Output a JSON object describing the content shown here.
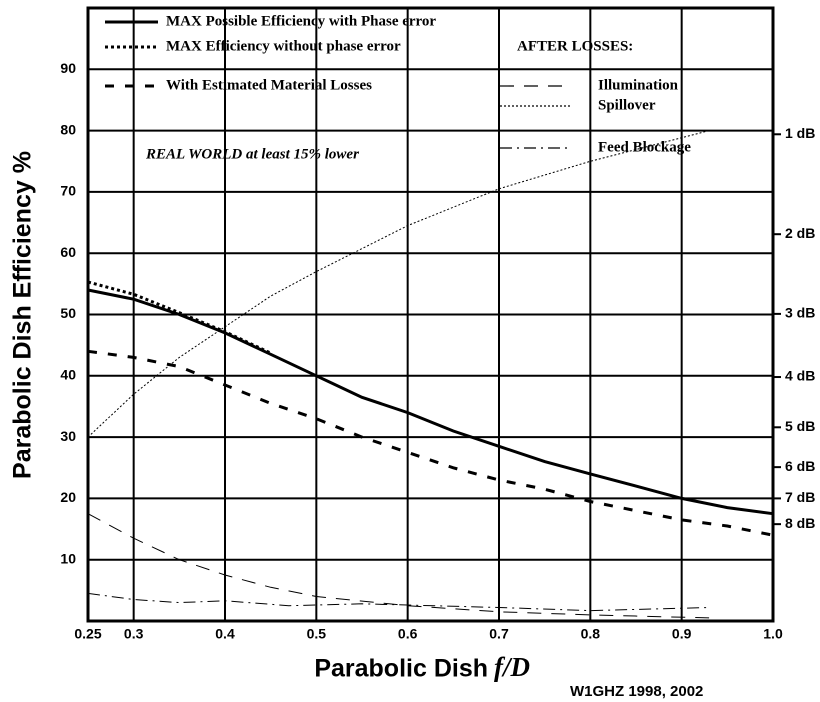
{
  "chart_data": {
    "type": "line",
    "ylabel": "Parabolic Dish Efficiency %",
    "xlabel": "Parabolic Dish",
    "xlabel_var": "f/D",
    "annotation": "REAL WORLD at least 15% lower",
    "legend_heading": "AFTER LOSSES:",
    "credit": "W1GHZ 1998, 2002",
    "xlim": [
      0.25,
      1.0
    ],
    "xticks": [
      0.25,
      0.3,
      0.4,
      0.5,
      0.6,
      0.7,
      0.8,
      0.9,
      {
        "value": 1.0,
        "label": "1.0"
      }
    ],
    "ylim": [
      0,
      100
    ],
    "yticks": [
      10,
      20,
      30,
      40,
      50,
      60,
      70,
      80,
      90
    ],
    "y2lim": [
      0,
      100
    ],
    "y2ticks": [
      {
        "value": 79.4,
        "label": "1 dB"
      },
      {
        "value": 63.1,
        "label": "2 dB"
      },
      {
        "value": 50.1,
        "label": "3 dB"
      },
      {
        "value": 39.8,
        "label": "4 dB"
      },
      {
        "value": 31.6,
        "label": "5 dB"
      },
      {
        "value": 25.1,
        "label": "6 dB"
      },
      {
        "value": 20.0,
        "label": "7 dB"
      },
      {
        "value": 15.8,
        "label": "8 dB"
      }
    ],
    "grid": true,
    "series": [
      {
        "name": "MAX Possible Efficiency with Phase error",
        "color": "#000000",
        "style": "solid",
        "width": 3,
        "group": "main",
        "x": [
          0.25,
          0.3,
          0.35,
          0.4,
          0.45,
          0.5,
          0.55,
          0.6,
          0.65,
          0.7,
          0.75,
          0.8,
          0.85,
          0.9,
          0.95,
          1.0
        ],
        "values": [
          54,
          52.5,
          50,
          47,
          43.5,
          40,
          36.5,
          34,
          31,
          28.5,
          26,
          24,
          22,
          20,
          18.5,
          17.5
        ]
      },
      {
        "name": "MAX Efficiency without phase error",
        "color": "#000000",
        "style": "dotted",
        "width": 3,
        "group": "main",
        "x": [
          0.25,
          0.3,
          0.35,
          0.4,
          0.45
        ],
        "values": [
          55.3,
          53.3,
          50.3,
          47.2,
          43.7
        ]
      },
      {
        "name": "With Estimated Material Losses",
        "color": "#000000",
        "style": "dashed",
        "width": 3,
        "group": "main",
        "x": [
          0.25,
          0.3,
          0.35,
          0.4,
          0.45,
          0.5,
          0.55,
          0.6,
          0.65,
          0.7,
          0.75,
          0.8,
          0.85,
          0.9,
          0.95,
          1.0
        ],
        "values": [
          44,
          43,
          41.5,
          38.5,
          35.5,
          33,
          30,
          27.5,
          25,
          23,
          21.5,
          19.5,
          18,
          16.5,
          15.5,
          14
        ]
      },
      {
        "name": "Illumination",
        "color": "#000000",
        "style": "longdash",
        "width": 1,
        "group": "after",
        "x": [
          0.25,
          0.3,
          0.35,
          0.4,
          0.45,
          0.5,
          0.6,
          0.7,
          0.8,
          0.93
        ],
        "values": [
          17.5,
          13.5,
          10,
          7.5,
          5.5,
          4,
          2.5,
          1.5,
          1,
          0.5
        ]
      },
      {
        "name": "Spillover",
        "color": "#000000",
        "style": "finedot",
        "width": 1,
        "group": "after",
        "x": [
          0.25,
          0.3,
          0.35,
          0.4,
          0.45,
          0.5,
          0.6,
          0.7,
          0.8,
          0.93
        ],
        "values": [
          30,
          37,
          43,
          48,
          53,
          57,
          64.5,
          70.5,
          75,
          80
        ]
      },
      {
        "name": "Feed Blockage",
        "color": "#000000",
        "style": "dashdot",
        "width": 1,
        "group": "after",
        "x": [
          0.25,
          0.3,
          0.35,
          0.4,
          0.47,
          0.55,
          0.7,
          0.8,
          0.93
        ],
        "values": [
          4.5,
          3.5,
          3,
          3.3,
          2.5,
          2.8,
          2.2,
          1.7,
          2.2
        ]
      }
    ]
  }
}
